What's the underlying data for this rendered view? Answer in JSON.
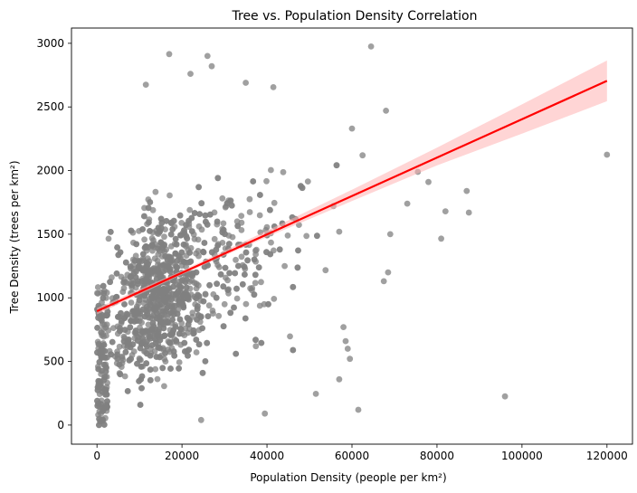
{
  "chart_data": {
    "type": "scatter",
    "title": "Tree vs. Population Density Correlation",
    "xlabel": "Population Density (people per km²)",
    "ylabel": "Tree Density (trees per km²)",
    "xlim": [
      -6000,
      126000
    ],
    "ylim": [
      -150,
      3120
    ],
    "xticks": [
      0,
      20000,
      40000,
      60000,
      80000,
      100000,
      120000
    ],
    "yticks": [
      0,
      500,
      1000,
      1500,
      2000,
      2500,
      3000
    ],
    "grid": false,
    "legend": "none",
    "point_color": "#808080",
    "line_color": "#ff0000",
    "band_color": "#ffb3b3",
    "regression": {
      "x_start": 0,
      "y_start": 895,
      "x_end": 120000,
      "y_end": 2705
    },
    "confidence_band": [
      {
        "x": 0,
        "low": 870,
        "high": 920
      },
      {
        "x": 20000,
        "low": 1183,
        "high": 1213
      },
      {
        "x": 40000,
        "low": 1478,
        "high": 1528
      },
      {
        "x": 60000,
        "low": 1760,
        "high": 1850
      },
      {
        "x": 80000,
        "low": 2040,
        "high": 2180
      },
      {
        "x": 100000,
        "low": 2290,
        "high": 2520
      },
      {
        "x": 120000,
        "low": 2545,
        "high": 2865
      }
    ],
    "highlighted_points": [
      {
        "x": 120000,
        "y": 2125
      },
      {
        "x": 96000,
        "y": 225
      },
      {
        "x": 64500,
        "y": 2975
      },
      {
        "x": 17000,
        "y": 2915
      },
      {
        "x": 26000,
        "y": 2900
      },
      {
        "x": 27000,
        "y": 2820
      },
      {
        "x": 22000,
        "y": 2760
      },
      {
        "x": 11500,
        "y": 2675
      },
      {
        "x": 35000,
        "y": 2690
      },
      {
        "x": 41500,
        "y": 2655
      },
      {
        "x": 68000,
        "y": 2470
      },
      {
        "x": 87000,
        "y": 1840
      },
      {
        "x": 87500,
        "y": 1670
      },
      {
        "x": 82000,
        "y": 1680
      },
      {
        "x": 81000,
        "y": 1465
      },
      {
        "x": 78000,
        "y": 1910
      },
      {
        "x": 75500,
        "y": 1990
      },
      {
        "x": 73000,
        "y": 1740
      },
      {
        "x": 69000,
        "y": 1500
      },
      {
        "x": 68500,
        "y": 1200
      },
      {
        "x": 67500,
        "y": 1130
      },
      {
        "x": 58000,
        "y": 770
      },
      {
        "x": 58500,
        "y": 660
      },
      {
        "x": 59000,
        "y": 600
      },
      {
        "x": 59500,
        "y": 520
      },
      {
        "x": 57000,
        "y": 360
      },
      {
        "x": 61500,
        "y": 120
      },
      {
        "x": 51500,
        "y": 245
      },
      {
        "x": 39500,
        "y": 90
      },
      {
        "x": 24500,
        "y": 40
      },
      {
        "x": 57000,
        "y": 1520
      },
      {
        "x": 60000,
        "y": 2330
      },
      {
        "x": 62500,
        "y": 2120
      }
    ]
  }
}
